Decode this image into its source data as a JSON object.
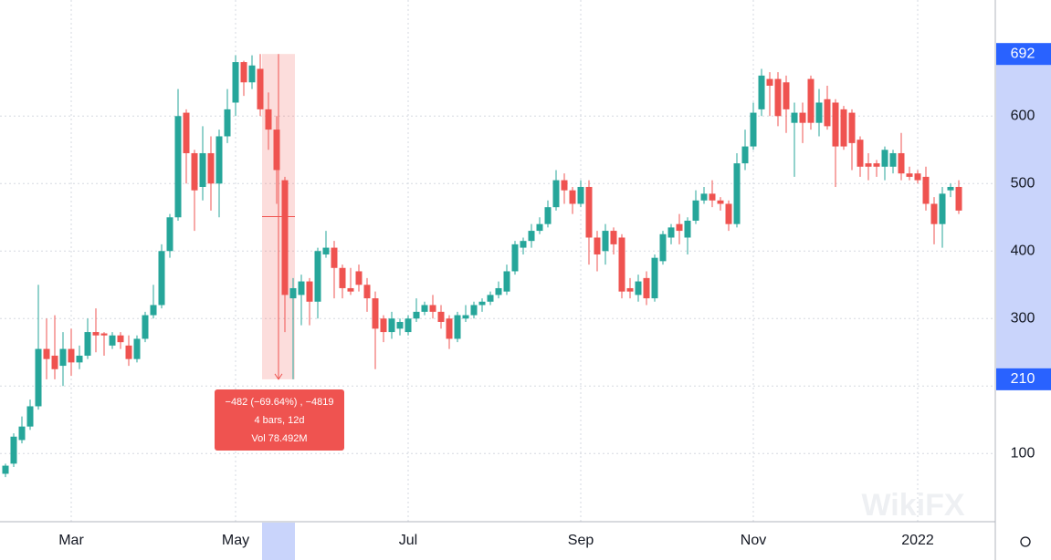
{
  "chart_data": {
    "type": "candlestick",
    "categories": [
      null,
      null,
      null,
      null,
      null,
      null,
      null,
      null,
      "Mar",
      null,
      null,
      null,
      null,
      null,
      null,
      null,
      null,
      null,
      null,
      null,
      null,
      null,
      null,
      null,
      null,
      null,
      null,
      null,
      "May",
      null,
      null,
      null,
      null,
      null,
      null,
      null,
      null,
      null,
      null,
      null,
      null,
      null,
      null,
      null,
      null,
      null,
      null,
      null,
      null,
      "Jul",
      null,
      null,
      null,
      null,
      null,
      null,
      null,
      null,
      null,
      null,
      null,
      null,
      null,
      null,
      null,
      null,
      null,
      null,
      null,
      null,
      "Sep",
      null,
      null,
      null,
      null,
      null,
      null,
      null,
      null,
      null,
      null,
      null,
      null,
      null,
      null,
      null,
      null,
      null,
      null,
      null,
      null,
      "Nov",
      null,
      null,
      null,
      null,
      null,
      null,
      null,
      null,
      null,
      null,
      null,
      null,
      null,
      null,
      null,
      null,
      null,
      null,
      null,
      "2022",
      null,
      null,
      null,
      null,
      null
    ],
    "open": [
      70,
      85,
      120,
      140,
      170,
      255,
      245,
      230,
      255,
      235,
      245,
      280,
      278,
      260,
      275,
      260,
      240,
      270,
      305,
      320,
      400,
      450,
      605,
      545,
      495,
      545,
      500,
      570,
      620,
      680,
      650,
      670,
      610,
      580,
      505,
      330,
      335,
      355,
      325,
      395,
      405,
      375,
      345,
      370,
      350,
      330,
      300,
      280,
      285,
      280,
      300,
      310,
      320,
      310,
      300,
      270,
      300,
      305,
      320,
      325,
      335,
      340,
      370,
      405,
      415,
      430,
      440,
      465,
      505,
      490,
      470,
      495,
      420,
      400,
      430,
      420,
      345,
      335,
      360,
      330,
      385,
      420,
      440,
      420,
      445,
      475,
      485,
      475,
      470,
      440,
      530,
      555,
      610,
      655,
      655,
      650,
      590,
      605,
      655,
      590,
      625,
      620,
      610,
      605,
      565,
      530,
      530,
      525,
      525,
      545,
      515,
      515,
      510,
      470,
      440,
      490,
      495
    ],
    "high": [
      85,
      130,
      155,
      180,
      350,
      300,
      305,
      280,
      285,
      260,
      300,
      315,
      280,
      280,
      280,
      275,
      275,
      310,
      350,
      410,
      455,
      640,
      610,
      550,
      585,
      570,
      580,
      640,
      690,
      682,
      690,
      692,
      635,
      600,
      510,
      360,
      365,
      360,
      405,
      430,
      415,
      380,
      375,
      380,
      360,
      340,
      305,
      310,
      300,
      305,
      330,
      325,
      335,
      320,
      305,
      310,
      320,
      325,
      330,
      340,
      355,
      380,
      415,
      420,
      440,
      450,
      475,
      520,
      515,
      495,
      505,
      505,
      430,
      440,
      435,
      425,
      360,
      365,
      370,
      395,
      430,
      440,
      455,
      450,
      490,
      495,
      505,
      480,
      475,
      545,
      580,
      620,
      670,
      665,
      665,
      660,
      620,
      620,
      660,
      640,
      645,
      625,
      615,
      610,
      570,
      545,
      535,
      555,
      550,
      575,
      525,
      520,
      525,
      480,
      495,
      500,
      505
    ],
    "low": [
      65,
      80,
      115,
      135,
      165,
      210,
      210,
      200,
      215,
      225,
      240,
      250,
      245,
      255,
      255,
      230,
      235,
      265,
      300,
      315,
      390,
      445,
      500,
      430,
      475,
      460,
      450,
      560,
      600,
      630,
      640,
      600,
      550,
      470,
      280,
      210,
      290,
      290,
      300,
      390,
      330,
      330,
      335,
      340,
      310,
      225,
      265,
      270,
      275,
      275,
      295,
      305,
      300,
      285,
      255,
      265,
      295,
      300,
      310,
      320,
      330,
      335,
      365,
      395,
      405,
      425,
      435,
      460,
      470,
      455,
      465,
      380,
      370,
      380,
      395,
      330,
      330,
      325,
      320,
      325,
      380,
      410,
      410,
      395,
      440,
      470,
      465,
      460,
      430,
      435,
      520,
      550,
      600,
      600,
      585,
      575,
      510,
      560,
      580,
      570,
      580,
      495,
      550,
      520,
      510,
      505,
      510,
      505,
      515,
      505,
      505,
      500,
      460,
      410,
      405,
      480,
      455
    ],
    "close": [
      82,
      125,
      140,
      170,
      255,
      240,
      225,
      255,
      235,
      245,
      280,
      275,
      275,
      275,
      265,
      240,
      270,
      305,
      320,
      400,
      450,
      600,
      545,
      490,
      545,
      500,
      570,
      610,
      680,
      650,
      675,
      610,
      580,
      520,
      335,
      345,
      355,
      325,
      400,
      405,
      375,
      345,
      340,
      350,
      330,
      285,
      280,
      300,
      295,
      300,
      310,
      320,
      310,
      295,
      270,
      305,
      305,
      320,
      325,
      335,
      345,
      370,
      410,
      415,
      430,
      440,
      465,
      505,
      490,
      470,
      495,
      420,
      395,
      430,
      410,
      340,
      340,
      355,
      330,
      390,
      425,
      435,
      430,
      445,
      475,
      485,
      475,
      470,
      440,
      530,
      555,
      605,
      660,
      645,
      600,
      610,
      605,
      590,
      590,
      620,
      585,
      555,
      555,
      560,
      525,
      525,
      525,
      550,
      545,
      515,
      510,
      505,
      470,
      440,
      485,
      495,
      460
    ],
    "up_color": "#26a69a",
    "down_color": "#ef5350",
    "ylim": [
      -1,
      772
    ],
    "yticks": [
      100,
      200,
      300,
      400,
      500,
      600
    ],
    "grid": true,
    "measure": {
      "high": 692,
      "low": 210,
      "change": "−482 (−69.64%) , −4819",
      "bars": "4 bars, 12d",
      "volume": "Vol 78.492M"
    },
    "watermark": "WikiFX"
  }
}
